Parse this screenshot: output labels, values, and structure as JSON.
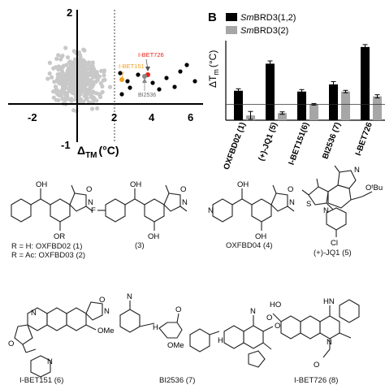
{
  "panelA": {
    "x_axis": {
      "ticks": [
        "-2",
        "2",
        "4",
        "6"
      ],
      "label_main": "Δ",
      "label_sub": "TM",
      "label_unit": "(°C)"
    },
    "y_axis": {
      "ticks": [
        "2",
        "-1"
      ]
    },
    "annotations": {
      "ibet726": "I-BET726",
      "ibet151": "I-BET151",
      "bi2536": "BI2536"
    },
    "colors": {
      "background": "#c8c8c8",
      "hits": "#000000",
      "ibet726": "#e8231b",
      "ibet151": "#f2a01e",
      "bi2536": "#888888"
    }
  },
  "panelB": {
    "label": "B",
    "legend": [
      {
        "name": "SmBRD3(1,2)",
        "italic_prefix": "Sm",
        "rest": "BRD3(1,2)",
        "color": "#000000"
      },
      {
        "name": "SmBRD3(2)",
        "italic_prefix": "Sm",
        "rest": "BRD3(2)",
        "color": "#a6a6a6"
      }
    ],
    "y_label_main": "ΔT",
    "y_label_sub": "m",
    "y_label_unit": "(°C)",
    "chart_data": {
      "type": "bar",
      "categories": [
        "OXFBD02 (1)",
        "(+)-JQ1 (5)",
        "I-BET151(6)",
        "BI2536 (7)",
        "I-BET726"
      ],
      "series": [
        {
          "name": "SmBRD3(1,2)",
          "values": [
            3.7,
            7.1,
            3.6,
            4.5,
            9.2
          ],
          "errors": [
            0.25,
            0.35,
            0.25,
            0.35,
            0.3
          ]
        },
        {
          "name": "SmBRD3(2)",
          "values": [
            0.6,
            0.9,
            2.0,
            3.6,
            3.0
          ],
          "errors": [
            0.5,
            0.15,
            0.1,
            0.15,
            0.2
          ]
        }
      ],
      "threshold": 2,
      "ylim": [
        0,
        10
      ]
    }
  },
  "compounds": [
    {
      "id": "c1",
      "label": "R = H: OXFBD02 (1)",
      "label2": "R = Ac: OXFBD03 (2)"
    },
    {
      "id": "c3",
      "label": "(3)"
    },
    {
      "id": "c4",
      "label": "OXFBD04 (4)"
    },
    {
      "id": "c5",
      "label": "(+)-JQ1 (5)"
    },
    {
      "id": "c6",
      "label": "I-BET151 (6)"
    },
    {
      "id": "c7",
      "label": "BI2536 (7)"
    },
    {
      "id": "c8",
      "label": "I-BET726 (8)"
    }
  ],
  "atoms": {
    "oh": "OH",
    "or": "OR",
    "o": "O",
    "n": "N",
    "f": "F",
    "cl": "Cl",
    "s": "S",
    "nh": "NH",
    "h": "H",
    "hn": "HN",
    "ho": "HO",
    "ome": "OMe",
    "otbu": "OᵗBu"
  }
}
